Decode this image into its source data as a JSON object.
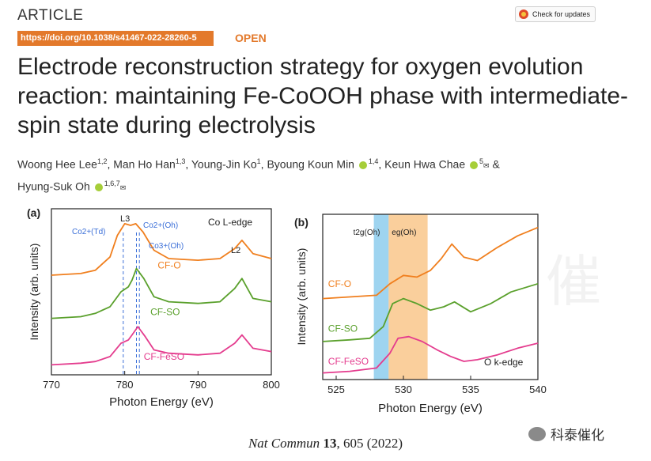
{
  "header": {
    "article_label": "ARTICLE",
    "updates_label": "Check for updates",
    "doi": "https://doi.org/10.1038/s41467-022-28260-5",
    "open": "OPEN"
  },
  "title": "Electrode reconstruction strategy for oxygen evolution reaction: maintaining Fe-CoOOH phase with intermediate-spin state during electrolysis",
  "authors": [
    {
      "name": "Woong Hee Lee",
      "aff": "1,2"
    },
    {
      "name": "Man Ho Han",
      "aff": "1,3"
    },
    {
      "name": "Young-Jin Ko",
      "aff": "1"
    },
    {
      "name": "Byoung Koun Min",
      "aff": "1,4"
    },
    {
      "name": "Keun Hwa Chae",
      "aff": "5"
    },
    {
      "name": "Hyung-Suk Oh",
      "aff": "1,6,7"
    }
  ],
  "author_separators": [
    ",",
    ",",
    ",",
    ",",
    "&"
  ],
  "citation": {
    "journal": "Nat Commun",
    "volume": "13",
    "rest": ", 605 (2022)"
  },
  "wechat": "科泰催化",
  "watermark": "催",
  "colors": {
    "orange": "#f07f1e",
    "green": "#5aa02c",
    "pink": "#e43c8e",
    "blue": "#3b6fd8",
    "accent": "#e3792b"
  },
  "chart_data": [
    {
      "type": "line",
      "panel": "(a)",
      "title": "Co L-edge",
      "xlabel": "Photon Energy (eV)",
      "ylabel": "Intensity (arb. units)",
      "xlim": [
        770,
        800
      ],
      "ylim": [
        0,
        10
      ],
      "xticks": [
        "770",
        "780",
        "790",
        "800"
      ],
      "annotations": [
        "L3",
        "L2",
        "Co2+(Td)",
        "Co2+(Oh)",
        "Co3+(Oh)"
      ],
      "vlines": [
        779.8,
        781.6,
        782.0
      ],
      "series": [
        {
          "name": "CF-O",
          "color": "#f07f1e",
          "x": [
            770,
            774,
            776,
            778,
            779,
            780,
            780.8,
            781.5,
            782.5,
            784,
            786,
            790,
            793,
            795,
            796,
            797.5,
            800
          ],
          "y": [
            6.0,
            6.1,
            6.3,
            7.1,
            8.4,
            9.1,
            9.0,
            9.1,
            8.6,
            7.5,
            7.0,
            6.9,
            7.0,
            7.6,
            8.1,
            7.3,
            7.0
          ]
        },
        {
          "name": "CF-SO",
          "color": "#5aa02c",
          "x": [
            770,
            774,
            776,
            778,
            779.5,
            780.5,
            781,
            781.6,
            782.6,
            784,
            786,
            790,
            793,
            795,
            796,
            797.5,
            800
          ],
          "y": [
            3.4,
            3.5,
            3.7,
            4.1,
            5.0,
            5.3,
            5.7,
            6.4,
            5.8,
            4.7,
            4.4,
            4.3,
            4.4,
            5.2,
            5.8,
            4.6,
            4.4
          ]
        },
        {
          "name": "CF-FeSO",
          "color": "#e43c8e",
          "x": [
            770,
            774,
            776,
            778,
            779.5,
            780.5,
            781,
            781.8,
            782.8,
            784,
            786,
            790,
            793,
            795,
            796,
            797.5,
            800
          ],
          "y": [
            0.6,
            0.7,
            0.8,
            1.1,
            1.9,
            2.1,
            2.4,
            2.9,
            2.3,
            1.5,
            1.3,
            1.2,
            1.3,
            1.9,
            2.4,
            1.6,
            1.4
          ]
        }
      ]
    },
    {
      "type": "line",
      "panel": "(b)",
      "title": "O k-edge",
      "xlabel": "Photon Energy (eV)",
      "ylabel": "Intensity (arb. units)",
      "xlim": [
        524,
        540
      ],
      "ylim": [
        0,
        10
      ],
      "xticks": [
        "525",
        "530",
        "535",
        "540"
      ],
      "regions": [
        {
          "label": "t2g(Oh)",
          "from": 527.8,
          "to": 528.9,
          "color": "#4fb0e3"
        },
        {
          "label": "eg(Oh)",
          "from": 528.9,
          "to": 531.8,
          "color": "#f6a84a"
        }
      ],
      "series": [
        {
          "name": "CF-O",
          "color": "#f07f1e",
          "x": [
            524,
            526,
            528,
            529,
            530,
            531,
            532,
            532.8,
            533.6,
            534.5,
            535.5,
            537,
            538.5,
            540
          ],
          "y": [
            4.9,
            5.0,
            5.1,
            5.8,
            6.3,
            6.2,
            6.6,
            7.3,
            8.2,
            7.4,
            7.2,
            8.0,
            8.7,
            9.2
          ]
        },
        {
          "name": "CF-SO",
          "color": "#5aa02c",
          "x": [
            524,
            526,
            527.5,
            528.5,
            529.2,
            530,
            531,
            532,
            533,
            533.8,
            535,
            536.5,
            538,
            540
          ],
          "y": [
            2.3,
            2.4,
            2.5,
            3.2,
            4.6,
            4.9,
            4.6,
            4.2,
            4.4,
            4.7,
            4.1,
            4.6,
            5.3,
            5.8
          ]
        },
        {
          "name": "CF-FeSO",
          "color": "#e43c8e",
          "x": [
            524,
            526,
            528,
            529,
            529.6,
            530.4,
            531.4,
            532.5,
            533.5,
            534.5,
            535.5,
            537,
            538.5,
            540
          ],
          "y": [
            0.4,
            0.5,
            0.7,
            1.6,
            2.5,
            2.6,
            2.3,
            1.8,
            1.4,
            1.1,
            1.2,
            1.5,
            1.9,
            2.2
          ]
        }
      ]
    }
  ]
}
